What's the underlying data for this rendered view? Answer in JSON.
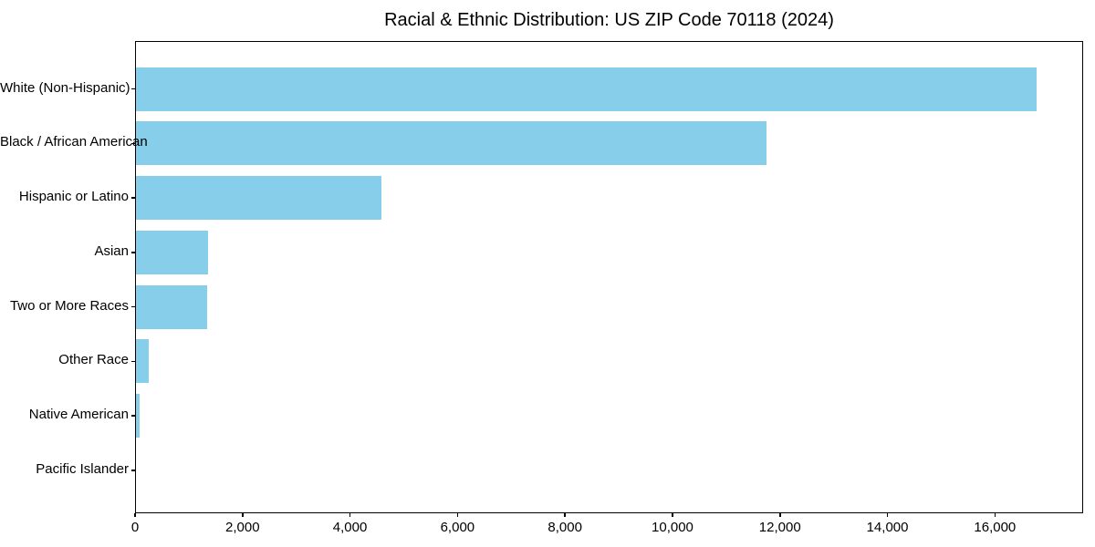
{
  "chart_data": {
    "type": "bar",
    "orientation": "horizontal",
    "title": "Racial & Ethnic Distribution: US ZIP Code 70118 (2024)",
    "categories": [
      "White (Non-Hispanic)",
      "Black / African American",
      "Hispanic or Latino",
      "Asian",
      "Two or More Races",
      "Other Race",
      "Native American",
      "Pacific Islander"
    ],
    "values": [
      16750,
      11730,
      4560,
      1340,
      1320,
      240,
      70,
      0
    ],
    "xlabel": "",
    "ylabel": "",
    "xlim": [
      0,
      17590
    ],
    "x_ticks": [
      {
        "value": 0,
        "label": "0"
      },
      {
        "value": 2000,
        "label": "2,000"
      },
      {
        "value": 4000,
        "label": "4,000"
      },
      {
        "value": 6000,
        "label": "6,000"
      },
      {
        "value": 8000,
        "label": "8,000"
      },
      {
        "value": 10000,
        "label": "10,000"
      },
      {
        "value": 12000,
        "label": "12,000"
      },
      {
        "value": 14000,
        "label": "14,000"
      },
      {
        "value": 16000,
        "label": "16,000"
      }
    ],
    "bar_color": "#87CEEB",
    "background_color": "#FFFFFF",
    "axis_color": "#000000",
    "grid": false,
    "legend_position": "none"
  }
}
